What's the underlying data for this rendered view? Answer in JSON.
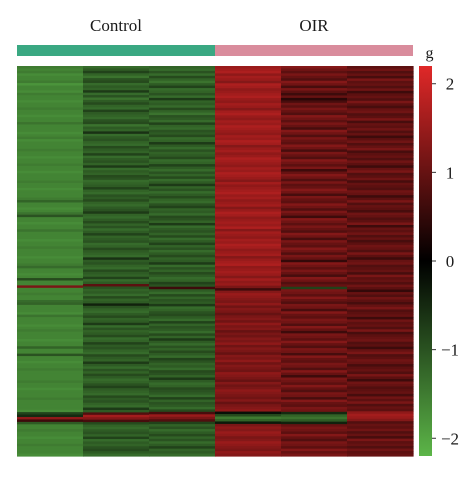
{
  "chart_data": {
    "type": "heatmap",
    "title": "",
    "xlabel": "",
    "ylabel": "",
    "groups": [
      {
        "name": "Control",
        "color": "#3aa882",
        "columns": 3
      },
      {
        "name": "OIR",
        "color": "#d98c9c",
        "columns": 3
      }
    ],
    "colorbar": {
      "label": "g",
      "range": [
        -2.2,
        2.2
      ],
      "ticks": [
        2,
        1,
        0,
        -1,
        -2
      ],
      "tick_labels": [
        "2",
        "1",
        "0",
        "−1",
        "−2"
      ],
      "colors": [
        "#5cb548",
        "#000000",
        "#e02828"
      ]
    },
    "column_values": [
      [
        -1.5,
        -1.6,
        -1.5,
        -1.7,
        -1.6,
        -1.6,
        -1.5,
        -1.8,
        -1.6,
        -1.6,
        -1.7,
        -1.5,
        -1.6,
        -1.6,
        -1.7,
        -1.6,
        -1.6,
        -1.5,
        -1.6,
        -1.6,
        -1.7,
        -1.6,
        -1.6,
        -1.4,
        -1.6,
        -1.6,
        -1.6,
        -1.7,
        -1.6,
        -1.5,
        -1.7,
        -1.6,
        -1.6,
        -1.6,
        -1.5,
        -1.6,
        -1.6,
        -1.7,
        -1.6,
        -1.6,
        -1.5,
        -1.6,
        -1.6,
        -1.7,
        -1.6,
        -1.6,
        -1.6,
        -1.5,
        -1.6,
        -1.6,
        -1.7,
        -1.6,
        -1.6,
        -1.6,
        -1.5,
        -1.2,
        -1.6,
        -1.6,
        -1.7,
        -1.6,
        -1.4,
        -1.0,
        -1.6,
        -1.6,
        -1.7,
        -1.6,
        -1.6,
        -1.4,
        -1.6,
        -1.6,
        -1.6,
        -1.7,
        -1.6,
        -1.6,
        -1.5,
        -1.6,
        -1.6,
        -1.6,
        -1.7,
        -1.6,
        -1.6,
        -1.5,
        -1.3,
        -1.6,
        -1.6,
        -1.7,
        -1.6,
        -0.9,
        -1.6,
        -1.6,
        1.2,
        -1.6,
        -1.6,
        -1.5,
        -1.6,
        -1.6,
        -1.3,
        -1.2,
        -1.6,
        -1.6,
        -1.6,
        -1.7,
        -1.4,
        -1.6,
        -1.6,
        -1.6,
        -1.7,
        -1.6,
        -1.5,
        -1.6,
        -1.6,
        -1.6,
        -1.7,
        -1.6,
        -1.6,
        -1.2,
        -1.6,
        -1.6,
        -1.0,
        -1.6,
        -1.6,
        -1.7,
        -1.6,
        -1.6,
        -1.5,
        -1.6,
        -1.6,
        -1.6,
        -1.6,
        -1.5,
        -1.6,
        -1.6,
        -1.7,
        -1.6,
        -1.6,
        -1.6,
        -1.5,
        -1.6,
        -1.6,
        -1.6,
        -1.6,
        -1.7,
        -0.8,
        -0.5,
        1.4,
        0.6,
        -1.1,
        -1.6,
        -1.6,
        -1.5,
        -1.6,
        -1.6,
        -1.7,
        -1.6,
        -1.6,
        -1.5,
        -1.6,
        -1.6,
        -1.6,
        -1.7
      ],
      [
        -1.3,
        -1.1,
        -0.8,
        -1.2,
        -1.4,
        -1.0,
        -0.9,
        -1.3,
        -1.1,
        -1.2,
        -0.7,
        -1.3,
        -1.0,
        -1.4,
        -1.1,
        -0.9,
        -1.2,
        -1.3,
        -0.8,
        -1.1,
        -1.2,
        -1.3,
        -1.0,
        -0.9,
        -1.4,
        -1.1,
        -1.2,
        -0.6,
        -1.3,
        -1.1,
        -1.0,
        -1.2,
        -1.3,
        -0.9,
        -1.1,
        -1.2,
        -0.8,
        -1.3,
        -1.1,
        -1.0,
        -1.2,
        -0.7,
        -1.3,
        -1.1,
        -1.2,
        -0.9,
        -1.0,
        -1.3,
        -1.2,
        -1.1,
        -0.8,
        -1.2,
        -1.3,
        -1.0,
        -1.1,
        -0.9,
        -1.2,
        -1.3,
        -1.1,
        -1.0,
        -0.7,
        -1.2,
        -1.3,
        -1.1,
        -0.9,
        -1.2,
        -1.0,
        -1.3,
        -1.1,
        -0.8,
        -1.2,
        -1.1,
        -1.0,
        -1.3,
        -1.2,
        -0.9,
        -1.1,
        -1.2,
        -1.3,
        -0.6,
        -1.1,
        -1.0,
        -1.2,
        -1.3,
        -0.9,
        -1.1,
        -1.2,
        -0.8,
        -1.3,
        -1.1,
        0.9,
        -1.0,
        -1.2,
        -1.1,
        -1.3,
        -0.9,
        -1.2,
        -1.1,
        -0.4,
        -1.0,
        -1.2,
        -1.3,
        -1.1,
        -0.9,
        -1.2,
        -1.1,
        -0.7,
        -1.3,
        -1.0,
        -1.2,
        -1.1,
        -0.9,
        -1.3,
        -1.2,
        -0.8,
        -1.1,
        -1.0,
        -1.2,
        -1.3,
        -0.9,
        -1.1,
        -1.2,
        -0.7,
        -1.1,
        -1.3,
        -1.0,
        -1.2,
        -0.9,
        -1.1,
        -1.3,
        -1.2,
        -1.0,
        -0.8,
        -1.1,
        -1.2,
        -1.3,
        -0.9,
        -1.1,
        -1.0,
        -1.2,
        -1.3,
        -0.7,
        -1.1,
        0.8,
        1.6,
        1.3,
        0.7,
        -0.9,
        -1.2,
        -1.3,
        -1.1,
        -1.0,
        -1.2,
        -0.8,
        -1.3,
        -1.1,
        -1.2,
        -1.0,
        -0.9,
        -1.1,
        -1.3
      ],
      [
        -1.2,
        -1.3,
        -1.0,
        -1.3,
        -0.9,
        -1.2,
        -1.4,
        -1.1,
        -0.8,
        -1.3,
        -1.2,
        -1.0,
        -1.3,
        -0.7,
        -1.2,
        -1.1,
        -1.3,
        -0.9,
        -1.2,
        -1.4,
        -1.0,
        -1.1,
        -1.3,
        -0.8,
        -1.2,
        -1.3,
        -1.0,
        -1.1,
        -0.9,
        -1.3,
        -1.2,
        -0.7,
        -1.1,
        -1.3,
        -1.0,
        -1.2,
        -1.1,
        -0.9,
        -1.3,
        -1.2,
        -0.8,
        -1.1,
        -1.3,
        -1.0,
        -1.2,
        -0.9,
        -1.3,
        -1.1,
        -0.7,
        -1.2,
        -1.0,
        -1.3,
        -1.1,
        -0.9,
        -1.2,
        -1.3,
        -1.0,
        -0.8,
        -1.2,
        -1.1,
        -1.3,
        -0.9,
        -1.0,
        -1.2,
        -0.7,
        -1.3,
        -1.1,
        -1.0,
        -1.2,
        -0.9,
        -1.3,
        -1.1,
        -0.8,
        -1.2,
        -1.0,
        -1.3,
        -1.1,
        -0.9,
        -1.2,
        -1.1,
        -0.7,
        -1.3,
        -1.0,
        -1.2,
        -0.9,
        -1.1,
        -1.3,
        -1.2,
        -0.8,
        -1.0,
        0.6,
        -1.1,
        -1.3,
        -0.9,
        -1.2,
        -1.0,
        -1.1,
        -0.7,
        -1.3,
        -1.2,
        -1.0,
        -0.9,
        -1.1,
        -1.3,
        -0.8,
        -1.2,
        -1.0,
        -1.1,
        -1.3,
        -0.9,
        -1.2,
        -0.7,
        -1.1,
        -1.3,
        -1.0,
        -1.2,
        -0.9,
        -1.1,
        -1.3,
        -0.8,
        -1.0,
        -1.2,
        -1.1,
        -1.3,
        -0.9,
        -1.0,
        -1.2,
        -0.7,
        -1.1,
        -1.3,
        -1.2,
        -0.9,
        -1.0,
        -1.1,
        -1.3,
        -0.8,
        -1.2,
        -1.0,
        -1.1,
        -1.3,
        -0.9,
        0.7,
        1.5,
        1.2,
        0.8,
        -0.8,
        -1.2,
        -1.0,
        -1.3,
        -1.1,
        -0.9,
        -1.2,
        -1.0,
        -1.3,
        -1.1,
        -0.8,
        -1.2,
        -1.1,
        -1.3
      ],
      [
        1.5,
        1.6,
        1.7,
        1.4,
        1.6,
        1.5,
        1.3,
        1.7,
        1.6,
        1.4,
        1.5,
        1.6,
        1.7,
        1.5,
        1.4,
        1.6,
        1.5,
        1.3,
        1.6,
        1.7,
        1.5,
        1.4,
        1.6,
        1.5,
        1.7,
        1.6,
        1.5,
        1.4,
        1.6,
        1.5,
        1.7,
        1.6,
        1.3,
        1.5,
        1.6,
        1.4,
        1.5,
        1.7,
        1.6,
        1.5,
        1.4,
        1.6,
        1.5,
        1.7,
        1.6,
        1.5,
        1.3,
        1.6,
        1.4,
        1.5,
        1.6,
        1.7,
        1.5,
        1.6,
        1.4,
        1.5,
        1.6,
        1.3,
        1.5,
        1.7,
        1.6,
        1.4,
        1.5,
        1.6,
        1.5,
        1.7,
        1.3,
        1.6,
        1.5,
        1.4,
        1.6,
        1.5,
        1.7,
        1.6,
        1.4,
        1.5,
        1.6,
        1.3,
        1.5,
        1.6,
        1.7,
        1.4,
        1.5,
        1.6,
        1.5,
        1.3,
        1.6,
        1.4,
        1.5,
        1.2,
        0.6,
        1.3,
        1.5,
        1.4,
        1.3,
        1.2,
        1.4,
        1.1,
        1.3,
        1.2,
        1.0,
        1.2,
        1.3,
        1.1,
        1.4,
        1.2,
        1.3,
        1.0,
        1.2,
        1.1,
        1.3,
        1.2,
        1.4,
        1.1,
        1.3,
        1.2,
        1.0,
        1.3,
        1.2,
        1.4,
        1.1,
        1.3,
        1.2,
        1.1,
        1.4,
        1.3,
        1.2,
        1.0,
        1.3,
        1.1,
        1.2,
        1.4,
        1.3,
        1.2,
        1.1,
        1.3,
        1.0,
        1.2,
        1.3,
        1.4,
        -0.2,
        -0.9,
        -1.5,
        -1.2,
        -0.3,
        1.2,
        1.4,
        1.3,
        1.5,
        1.4,
        1.2,
        1.3,
        1.5,
        1.4,
        1.3,
        1.2,
        1.4,
        1.3
      ],
      [
        1.3,
        1.1,
        0.9,
        1.2,
        1.0,
        0.8,
        1.3,
        1.1,
        0.7,
        1.2,
        0.9,
        0.6,
        1.0,
        0.4,
        0.7,
        1.1,
        0.9,
        1.2,
        1.0,
        0.8,
        1.3,
        1.1,
        0.9,
        1.2,
        1.0,
        0.7,
        1.3,
        1.1,
        0.8,
        1.2,
        1.0,
        0.9,
        1.3,
        1.1,
        0.7,
        1.2,
        1.0,
        0.8,
        1.3,
        1.1,
        0.9,
        1.2,
        0.6,
        1.0,
        1.3,
        1.1,
        0.8,
        1.2,
        0.9,
        1.0,
        1.3,
        1.1,
        0.7,
        1.2,
        1.0,
        0.9,
        1.3,
        1.1,
        0.8,
        1.2,
        1.0,
        0.6,
        1.3,
        1.1,
        0.9,
        1.2,
        1.0,
        0.8,
        1.3,
        1.1,
        0.7,
        1.2,
        1.0,
        0.9,
        1.3,
        1.1,
        0.8,
        1.2,
        1.0,
        0.5,
        1.3,
        1.1,
        0.9,
        1.2,
        1.0,
        0.7,
        1.3,
        1.1,
        0.8,
        1.0,
        -0.8,
        1.2,
        1.1,
        0.9,
        1.3,
        1.0,
        0.8,
        1.2,
        1.1,
        0.7,
        1.3,
        1.0,
        0.9,
        1.2,
        1.1,
        0.8,
        1.3,
        1.0,
        0.6,
        1.2,
        1.1,
        0.9,
        1.3,
        1.0,
        0.8,
        1.2,
        1.1,
        0.7,
        1.3,
        1.0,
        0.9,
        1.2,
        1.1,
        0.8,
        1.3,
        1.0,
        0.6,
        1.2,
        1.1,
        0.9,
        1.3,
        1.0,
        0.8,
        1.2,
        1.1,
        0.7,
        1.3,
        1.0,
        0.9,
        1.2,
        1.1,
        -0.5,
        -1.2,
        -1.4,
        -1.1,
        -0.4,
        1.0,
        1.2,
        1.1,
        0.9,
        1.3,
        1.0,
        0.8,
        1.2,
        1.1,
        0.9,
        1.3,
        1.0,
        1.2
      ],
      [
        0.9,
        1.1,
        0.8,
        1.0,
        0.7,
        1.2,
        0.9,
        1.0,
        0.8,
        1.1,
        0.6,
        0.9,
        1.0,
        0.8,
        1.2,
        0.9,
        0.7,
        1.0,
        1.1,
        0.8,
        0.9,
        1.2,
        0.7,
        1.0,
        0.9,
        1.1,
        0.8,
        1.0,
        0.6,
        0.9,
        1.1,
        0.8,
        1.0,
        1.2,
        0.7,
        0.9,
        1.0,
        0.8,
        1.1,
        0.9,
        0.6,
        1.0,
        1.2,
        0.8,
        0.9,
        1.1,
        0.7,
        1.0,
        0.9,
        0.8,
        1.1,
        1.0,
        0.6,
        0.9,
        1.2,
        0.8,
        1.0,
        0.9,
        0.7,
        1.1,
        1.0,
        0.8,
        0.9,
        1.2,
        0.6,
        1.0,
        0.9,
        1.1,
        0.8,
        1.0,
        0.7,
        0.9,
        1.1,
        1.0,
        0.8,
        1.2,
        0.9,
        0.6,
        1.0,
        1.1,
        0.8,
        0.9,
        1.0,
        0.7,
        1.2,
        0.9,
        1.0,
        0.8,
        1.1,
        0.9,
        0.5,
        1.0,
        0.8,
        1.1,
        0.9,
        0.7,
        1.0,
        1.2,
        0.8,
        0.9,
        1.0,
        0.6,
        1.1,
        0.9,
        1.0,
        0.8,
        1.2,
        0.7,
        0.9,
        1.0,
        1.1,
        0.8,
        0.9,
        0.6,
        1.0,
        1.2,
        0.8,
        0.9,
        1.1,
        1.0,
        0.7,
        0.9,
        1.0,
        0.8,
        1.2,
        0.9,
        0.6,
        1.1,
        1.0,
        0.8,
        0.9,
        1.0,
        0.7,
        1.1,
        0.9,
        1.2,
        0.8,
        1.0,
        0.9,
        1.4,
        1.6,
        1.5,
        1.3,
        0.8,
        1.0,
        0.9,
        1.1,
        0.8,
        1.0,
        0.7,
        1.2,
        0.9,
        1.0,
        0.8,
        1.1,
        0.9,
        1.0
      ]
    ]
  }
}
